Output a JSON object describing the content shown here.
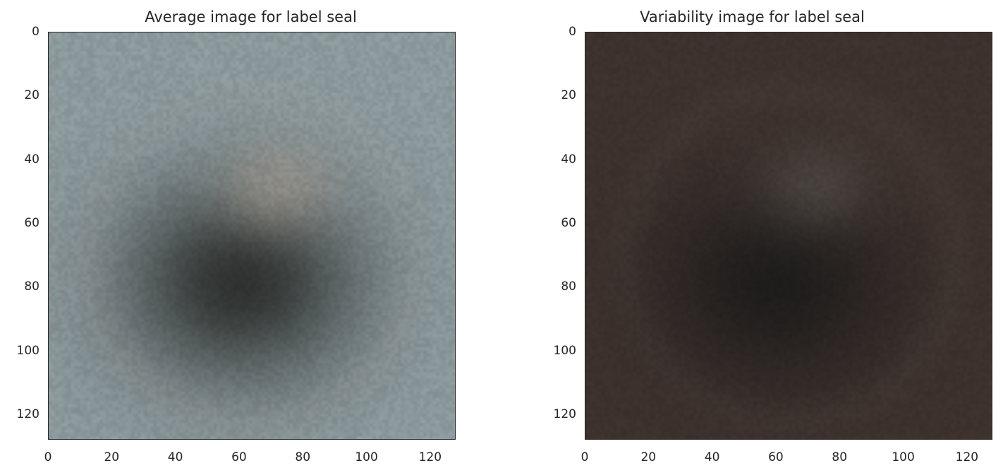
{
  "panels": [
    {
      "title": "Average image for label seal",
      "x_ticks": [
        "0",
        "20",
        "40",
        "60",
        "80",
        "100",
        "120"
      ],
      "y_ticks": [
        "0",
        "20",
        "40",
        "60",
        "80",
        "100",
        "120"
      ],
      "xlim": [
        0,
        128
      ],
      "ylim": [
        128,
        0
      ],
      "palette": {
        "background": "#8c9a9e",
        "dark": "#2f3230",
        "highlight": "#a39a8f"
      }
    },
    {
      "title": "Variability image for label seal",
      "x_ticks": [
        "0",
        "20",
        "40",
        "60",
        "80",
        "100",
        "120"
      ],
      "y_ticks": [
        "0",
        "20",
        "40",
        "60",
        "80",
        "100",
        "120"
      ],
      "xlim": [
        0,
        128
      ],
      "ylim": [
        128,
        0
      ],
      "palette": {
        "background": "#3e322e",
        "dark": "#1f1d1c",
        "highlight": "#55504b"
      }
    }
  ]
}
